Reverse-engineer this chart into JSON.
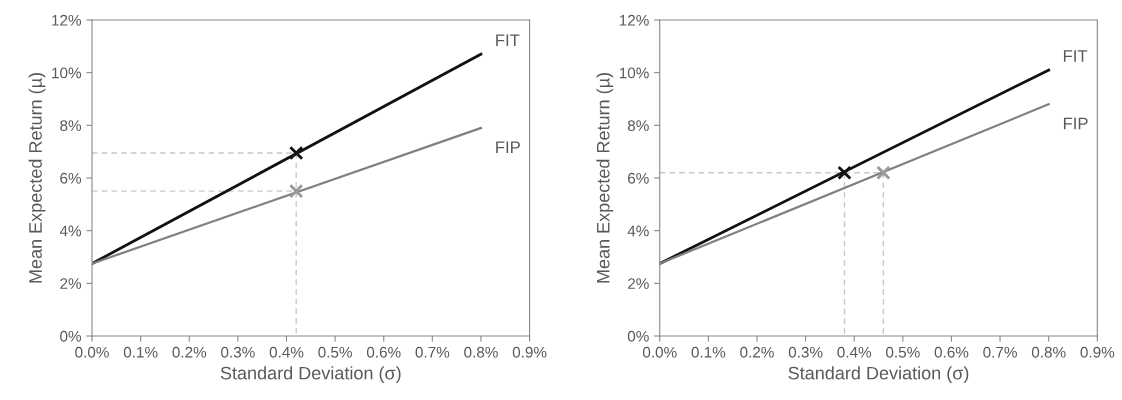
{
  "chart_data": [
    {
      "type": "line",
      "xlabel": "Standard Deviation (σ)",
      "ylabel": "Mean Expected Return (µ)",
      "xlim": [
        0,
        0.9
      ],
      "ylim": [
        0,
        12
      ],
      "grid": false,
      "legend": false,
      "xticks": [
        {
          "value": 0,
          "label": "0.0%"
        },
        {
          "value": 0.1,
          "label": "0.1%"
        },
        {
          "value": 0.2,
          "label": "0.2%"
        },
        {
          "value": 0.3,
          "label": "0.3%"
        },
        {
          "value": 0.4,
          "label": "0.4%"
        },
        {
          "value": 0.5,
          "label": "0.5%"
        },
        {
          "value": 0.6,
          "label": "0.6%"
        },
        {
          "value": 0.7,
          "label": "0.7%"
        },
        {
          "value": 0.8,
          "label": "0.8%"
        },
        {
          "value": 0.9,
          "label": "0.9%"
        }
      ],
      "yticks": [
        {
          "value": 0,
          "label": "0%"
        },
        {
          "value": 2,
          "label": "2%"
        },
        {
          "value": 4,
          "label": "4%"
        },
        {
          "value": 6,
          "label": "6%"
        },
        {
          "value": 8,
          "label": "8%"
        },
        {
          "value": 10,
          "label": "10%"
        },
        {
          "value": 12,
          "label": "12%"
        }
      ],
      "series": [
        {
          "type": "line",
          "line_style": "dashed",
          "color": "#c8c8c8",
          "x": [
            0,
            0.42,
            0.42
          ],
          "values": [
            6.95,
            6.95,
            0
          ]
        },
        {
          "type": "line",
          "line_style": "dashed",
          "color": "#c8c8c8",
          "x": [
            0,
            0.42
          ],
          "values": [
            5.5,
            5.5
          ]
        },
        {
          "type": "line",
          "name": "FIT",
          "color": "#111111",
          "x": [
            0,
            0.8
          ],
          "values": [
            2.75,
            10.7
          ]
        },
        {
          "type": "line",
          "name": "FIP",
          "color": "#808080",
          "x": [
            0,
            0.8
          ],
          "values": [
            2.75,
            7.9
          ]
        },
        {
          "type": "scatter",
          "marker": "cross",
          "color": "#111111",
          "x": [
            0.42
          ],
          "values": [
            6.95
          ]
        },
        {
          "type": "scatter",
          "marker": "cross",
          "color": "#999999",
          "x": [
            0.42
          ],
          "values": [
            5.5
          ]
        }
      ]
    },
    {
      "type": "line",
      "xlabel": "Standard Deviation (σ)",
      "ylabel": "Mean Expected Return (µ)",
      "xlim": [
        0,
        0.9
      ],
      "ylim": [
        0,
        12
      ],
      "grid": false,
      "legend": false,
      "xticks": [
        {
          "value": 0,
          "label": "0.0%"
        },
        {
          "value": 0.1,
          "label": "0.1%"
        },
        {
          "value": 0.2,
          "label": "0.2%"
        },
        {
          "value": 0.3,
          "label": "0.3%"
        },
        {
          "value": 0.4,
          "label": "0.4%"
        },
        {
          "value": 0.5,
          "label": "0.5%"
        },
        {
          "value": 0.6,
          "label": "0.6%"
        },
        {
          "value": 0.7,
          "label": "0.7%"
        },
        {
          "value": 0.8,
          "label": "0.8%"
        },
        {
          "value": 0.9,
          "label": "0.9%"
        }
      ],
      "yticks": [
        {
          "value": 0,
          "label": "0%"
        },
        {
          "value": 2,
          "label": "2%"
        },
        {
          "value": 4,
          "label": "4%"
        },
        {
          "value": 6,
          "label": "6%"
        },
        {
          "value": 8,
          "label": "8%"
        },
        {
          "value": 10,
          "label": "10%"
        },
        {
          "value": 12,
          "label": "12%"
        }
      ],
      "series": [
        {
          "type": "line",
          "line_style": "dashed",
          "color": "#c8c8c8",
          "x": [
            0,
            0.46,
            0.46
          ],
          "values": [
            6.2,
            6.2,
            0
          ]
        },
        {
          "type": "line",
          "line_style": "dashed",
          "color": "#c8c8c8",
          "x": [
            0.38,
            0.38
          ],
          "values": [
            6.2,
            0
          ]
        },
        {
          "type": "line",
          "name": "FIT",
          "color": "#111111",
          "x": [
            0,
            0.8
          ],
          "values": [
            2.75,
            10.1
          ]
        },
        {
          "type": "line",
          "name": "FIP",
          "color": "#808080",
          "x": [
            0,
            0.8
          ],
          "values": [
            2.75,
            8.8
          ]
        },
        {
          "type": "scatter",
          "marker": "cross",
          "color": "#111111",
          "x": [
            0.38
          ],
          "values": [
            6.2
          ]
        },
        {
          "type": "scatter",
          "marker": "cross",
          "color": "#999999",
          "x": [
            0.46
          ],
          "values": [
            6.2
          ]
        }
      ]
    }
  ]
}
